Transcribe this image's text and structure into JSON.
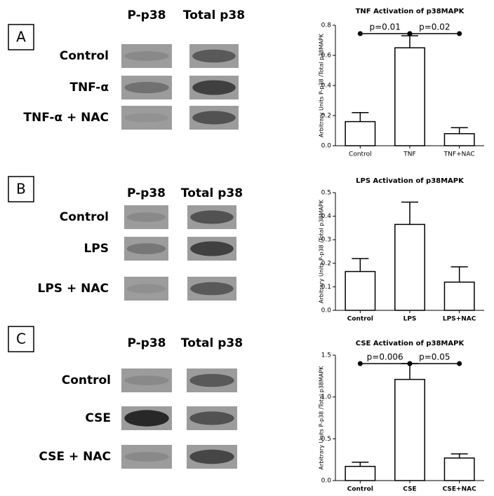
{
  "panels": [
    {
      "label": "A",
      "columns": [
        "P-p38",
        "Total p38"
      ],
      "rows": [
        {
          "label": "Control"
        },
        {
          "label": "TNF-α"
        },
        {
          "label": "TNF-α + NAC"
        }
      ]
    },
    {
      "label": "B",
      "columns": [
        "P-p38",
        "Total p38"
      ],
      "rows": [
        {
          "label": "Control"
        },
        {
          "label": "LPS"
        },
        {
          "label": "LPS + NAC"
        }
      ]
    },
    {
      "label": "C",
      "columns": [
        "P-p38",
        "Total p38"
      ],
      "rows": [
        {
          "label": "Control"
        },
        {
          "label": "CSE"
        },
        {
          "label": "CSE + NAC"
        }
      ]
    }
  ],
  "chart_data": [
    {
      "type": "bar",
      "title": "TNF Activation of p38MAPK",
      "y_label": "Arbitrary Units P-p38 /Total p38MAPK",
      "categories": [
        "Control",
        "TNF",
        "TNF+NAC"
      ],
      "values": [
        0.16,
        0.65,
        0.08
      ],
      "errors": [
        0.06,
        0.08,
        0.04
      ],
      "color": "#ffffff",
      "ylim": [
        0,
        0.8
      ],
      "yticks": [
        {
          "value": 0,
          "label": "0.0"
        },
        0.2,
        0.4,
        0.6,
        0.8
      ],
      "annotations": [
        "p=0.01",
        "p=0.02"
      ]
    },
    {
      "type": "bar",
      "title": "LPS Activation of p38MAPK",
      "y_label": "Arbitrary Units P-p38 /Total p38MAPK",
      "categories": [
        "Control",
        "LPS",
        "LPS+NAC"
      ],
      "values": [
        0.165,
        0.365,
        0.12
      ],
      "errors": [
        0.055,
        0.095,
        0.065
      ],
      "color": "#ffffff",
      "ylim": [
        0,
        0.5
      ],
      "yticks": [
        {
          "value": 0,
          "label": "0.0"
        },
        0.1,
        0.2,
        0.3,
        0.4,
        0.5
      ]
    },
    {
      "type": "bar",
      "title": "CSE Activation of p38MAPK",
      "y_label": "Arbitrary Units P-p38 /Total p38MAPK",
      "categories": [
        "Control",
        "CSE",
        "CSE+NAC"
      ],
      "values": [
        0.17,
        1.21,
        0.27
      ],
      "errors": [
        0.05,
        0.19,
        0.05
      ],
      "color": "#ffffff",
      "ylim": [
        0,
        1.5
      ],
      "yticks": [
        {
          "value": 0,
          "label": "0.0"
        },
        0.5,
        {
          "value": 1,
          "label": "1.0"
        },
        1.5
      ],
      "annotations": [
        "p=0.006",
        "p=0.05"
      ]
    }
  ]
}
